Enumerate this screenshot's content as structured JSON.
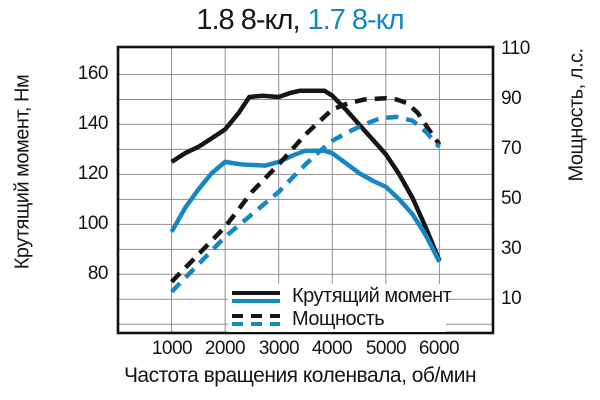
{
  "title": {
    "part_black": "1.8 8-кл,",
    "part_blue": "1.7 8-кл"
  },
  "colors": {
    "black": "#161616",
    "blue": "#1787c4",
    "grid": "#8f8f8f",
    "border": "#111111",
    "background": "#ffffff"
  },
  "chart_data": {
    "type": "line",
    "title": "1.8 8-кл, 1.7 8-кл",
    "xlabel": "Частота вращения коленвала, об/мин",
    "ylabel_left": "Крутящий момент, Нм",
    "ylabel_right": "Мощность, л.с.",
    "grid": true,
    "x_range": [
      0,
      7000
    ],
    "x_grid_step": 1000,
    "x_ticks": [
      1000,
      2000,
      3000,
      4000,
      5000,
      6000
    ],
    "y_left_range": [
      56.5,
      171
    ],
    "y_grid_values": [
      60,
      70,
      80,
      90,
      100,
      110,
      120,
      130,
      140,
      150,
      160
    ],
    "y_left_ticks": [
      80,
      100,
      120,
      140,
      160
    ],
    "y_right_ticks": [
      10,
      30,
      50,
      70,
      90,
      110
    ],
    "y_right_offset": 60,
    "legend_position": "inside-bottom-center",
    "legend": [
      {
        "label": "Крутящий момент",
        "dash": false
      },
      {
        "label": "Мощность",
        "dash": true
      }
    ],
    "series": [
      {
        "name": "1.8 8-кл — крутящий момент, Нм",
        "axis": "left",
        "color": "#161616",
        "dash": false,
        "points": [
          [
            1000,
            125
          ],
          [
            1250,
            128.5
          ],
          [
            1500,
            131
          ],
          [
            1750,
            134.5
          ],
          [
            2000,
            138
          ],
          [
            2250,
            144.5
          ],
          [
            2450,
            151
          ],
          [
            2700,
            151.5
          ],
          [
            3000,
            151
          ],
          [
            3200,
            152.5
          ],
          [
            3400,
            153.5
          ],
          [
            3850,
            153.5
          ],
          [
            4000,
            151.5
          ],
          [
            4250,
            146
          ],
          [
            4500,
            140
          ],
          [
            4750,
            134
          ],
          [
            5000,
            128
          ],
          [
            5250,
            120
          ],
          [
            5500,
            110.5
          ],
          [
            5750,
            98.5
          ],
          [
            6000,
            85.5
          ]
        ]
      },
      {
        "name": "1.7 8-кл — крутящий момент, Нм",
        "axis": "left",
        "color": "#1787c4",
        "dash": false,
        "points": [
          [
            1000,
            97
          ],
          [
            1250,
            106.5
          ],
          [
            1500,
            114
          ],
          [
            1750,
            120.5
          ],
          [
            2000,
            125
          ],
          [
            2300,
            124
          ],
          [
            2750,
            123.5
          ],
          [
            3000,
            125
          ],
          [
            3250,
            127.5
          ],
          [
            3500,
            129.5
          ],
          [
            3850,
            129.5
          ],
          [
            4000,
            128.5
          ],
          [
            4250,
            124.5
          ],
          [
            4500,
            120.5
          ],
          [
            4750,
            117.5
          ],
          [
            5000,
            115
          ],
          [
            5250,
            110
          ],
          [
            5500,
            104
          ],
          [
            5750,
            95.5
          ],
          [
            6000,
            85
          ]
        ]
      },
      {
        "name": "1.8 8-кл — мощность, л.с.",
        "axis": "right",
        "color": "#161616",
        "dash": true,
        "points": [
          [
            1000,
            17
          ],
          [
            1250,
            22.5
          ],
          [
            1500,
            28
          ],
          [
            1750,
            33.5
          ],
          [
            2000,
            39
          ],
          [
            2250,
            46
          ],
          [
            2500,
            53
          ],
          [
            2750,
            58.5
          ],
          [
            3000,
            64
          ],
          [
            3250,
            70
          ],
          [
            3500,
            76
          ],
          [
            3750,
            81
          ],
          [
            4000,
            86
          ],
          [
            4300,
            88.5
          ],
          [
            4600,
            90
          ],
          [
            5000,
            90.5
          ],
          [
            5200,
            90
          ],
          [
            5400,
            88.5
          ],
          [
            5600,
            84.5
          ],
          [
            5800,
            78
          ],
          [
            6000,
            72
          ]
        ]
      },
      {
        "name": "1.7 8-кл — мощность, л.с.",
        "axis": "right",
        "color": "#1787c4",
        "dash": true,
        "points": [
          [
            1000,
            13
          ],
          [
            1250,
            18.5
          ],
          [
            1500,
            24
          ],
          [
            1750,
            29.5
          ],
          [
            2000,
            35
          ],
          [
            2250,
            39.5
          ],
          [
            2500,
            44
          ],
          [
            2750,
            48.5
          ],
          [
            3000,
            53
          ],
          [
            3250,
            58.5
          ],
          [
            3500,
            64
          ],
          [
            3750,
            69
          ],
          [
            4000,
            73.5
          ],
          [
            4300,
            77
          ],
          [
            4600,
            80
          ],
          [
            4900,
            82.5
          ],
          [
            5200,
            83
          ],
          [
            5500,
            81.5
          ],
          [
            5750,
            77
          ],
          [
            6000,
            71
          ]
        ]
      }
    ]
  }
}
